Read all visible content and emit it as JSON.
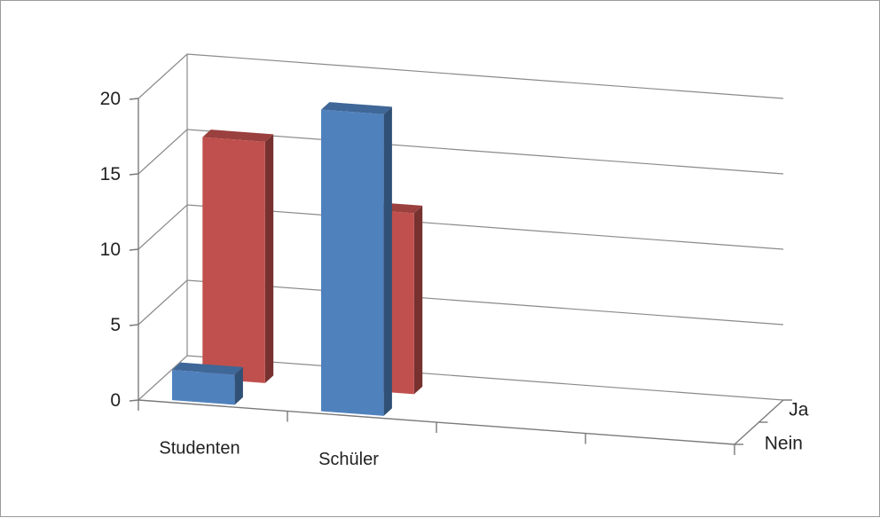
{
  "chart_data": {
    "type": "bar",
    "subtype": "3d-clustered-depth",
    "categories": [
      "Studenten",
      "Schüler"
    ],
    "series": [
      {
        "name": "Ja",
        "values": [
          2,
          20
        ],
        "color": "#4f81bd"
      },
      {
        "name": "Nein",
        "values": [
          16,
          12
        ],
        "color": "#c0504d"
      }
    ],
    "y_ticks": [
      "0",
      "5",
      "10",
      "15",
      "20"
    ],
    "ylim": [
      0,
      20
    ],
    "grid": true
  }
}
